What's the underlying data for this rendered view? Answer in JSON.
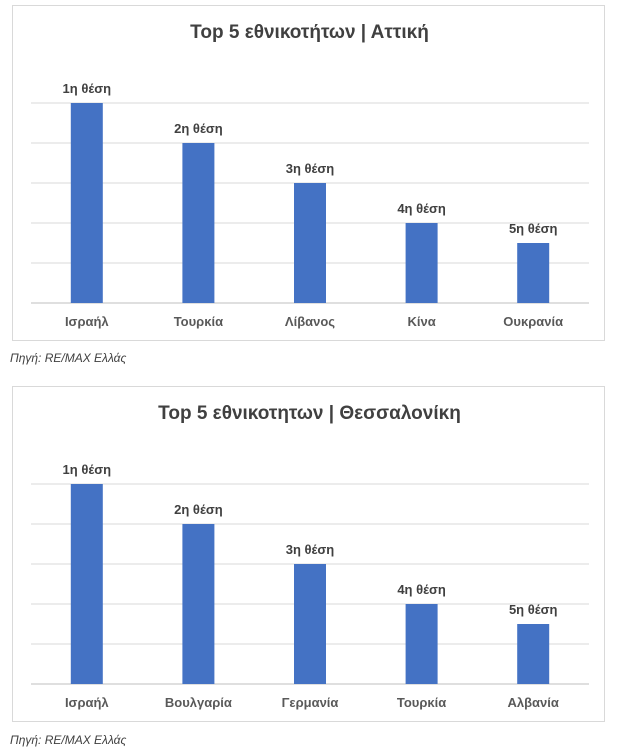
{
  "chart_data": [
    {
      "type": "bar",
      "title": "Top 5 εθνικοτήτων | Αττική",
      "categories": [
        "Ισραήλ",
        "Τουρκία",
        "Λίβανος",
        "Κίνα",
        "Ουκρανία"
      ],
      "values": [
        5,
        4,
        3,
        2,
        1.5
      ],
      "data_labels": [
        "1η θέση",
        "2η θέση",
        "3η θέση",
        "4η θέση",
        "5η θέση"
      ],
      "ylim": [
        0,
        5
      ],
      "grid": true,
      "bar_color": "#4472C4",
      "source": "Πηγή: RE/MAX Ελλάς"
    },
    {
      "type": "bar",
      "title": "Top 5 εθνικοτητων | Θεσσαλονίκη",
      "categories": [
        "Ισραήλ",
        "Βουλγαρία",
        "Γερμανία",
        "Τουρκία",
        "Αλβανία"
      ],
      "values": [
        5,
        4,
        3,
        2,
        1.5
      ],
      "data_labels": [
        "1η θέση",
        "2η θέση",
        "3η θέση",
        "4η θέση",
        "5η θέση"
      ],
      "ylim": [
        0,
        5
      ],
      "grid": true,
      "bar_color": "#4472C4",
      "source": "Πηγή: RE/MAX Ελλάς"
    }
  ]
}
